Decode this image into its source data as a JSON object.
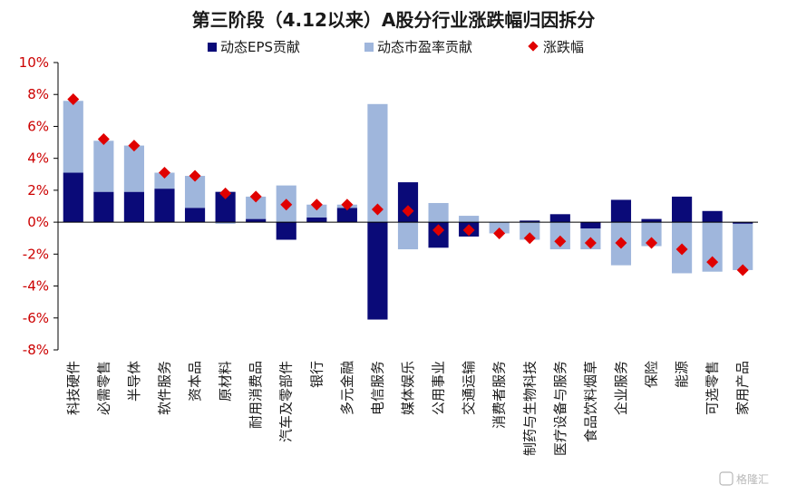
{
  "chart_data": {
    "type": "bar",
    "title": "第三阶段（4.12以来）A股分行业涨跌幅归因拆分",
    "categories": [
      "科技硬件",
      "必需零售",
      "半导体",
      "软件服务",
      "资本品",
      "原材料",
      "耐用消费品",
      "汽车及零部件",
      "银行",
      "多元金融",
      "电信服务",
      "媒体娱乐",
      "公用事业",
      "交通运输",
      "消费者服务",
      "制药与生物科技",
      "医疗设备与服务",
      "食品饮料烟草",
      "企业服务",
      "保险",
      "能源",
      "可选零售",
      "家用产品"
    ],
    "series": [
      {
        "name": "动态EPS贡献",
        "kind": "bar",
        "color": "#0a0a78",
        "values": [
          3.1,
          1.9,
          1.9,
          2.1,
          0.9,
          1.9,
          0.2,
          -1.1,
          0.3,
          0.9,
          -6.1,
          2.5,
          -1.6,
          -0.9,
          0.0,
          0.1,
          0.5,
          -0.4,
          1.4,
          0.2,
          1.6,
          0.7,
          -0.1
        ]
      },
      {
        "name": "动态市盈率贡献",
        "kind": "bar",
        "color": "#9fb6dc",
        "values": [
          4.5,
          3.2,
          2.9,
          1.0,
          2.0,
          -0.1,
          1.4,
          2.3,
          0.8,
          0.2,
          7.4,
          -1.7,
          1.2,
          0.4,
          -0.7,
          -1.1,
          -1.7,
          -1.3,
          -2.7,
          -1.5,
          -3.2,
          -3.1,
          -2.9
        ]
      },
      {
        "name": "涨跌幅",
        "kind": "marker",
        "color": "#e00000",
        "values": [
          7.7,
          5.2,
          4.8,
          3.1,
          2.9,
          1.8,
          1.6,
          1.1,
          1.1,
          1.1,
          0.8,
          0.7,
          -0.5,
          -0.5,
          -0.7,
          -1.0,
          -1.2,
          -1.3,
          -1.3,
          -1.3,
          -1.7,
          -2.5,
          -3.0
        ]
      }
    ],
    "ylim": [
      -8,
      10
    ],
    "yticks": [
      "-8%",
      "-6%",
      "-4%",
      "-2%",
      "0%",
      "2%",
      "4%",
      "6%",
      "8%",
      "10%"
    ],
    "ytick_values": [
      -8,
      -6,
      -4,
      -2,
      0,
      2,
      4,
      6,
      8,
      10
    ],
    "xlabel": "",
    "ylabel": "",
    "legend_position": "top-center",
    "grid": false
  },
  "watermark": "格隆汇"
}
